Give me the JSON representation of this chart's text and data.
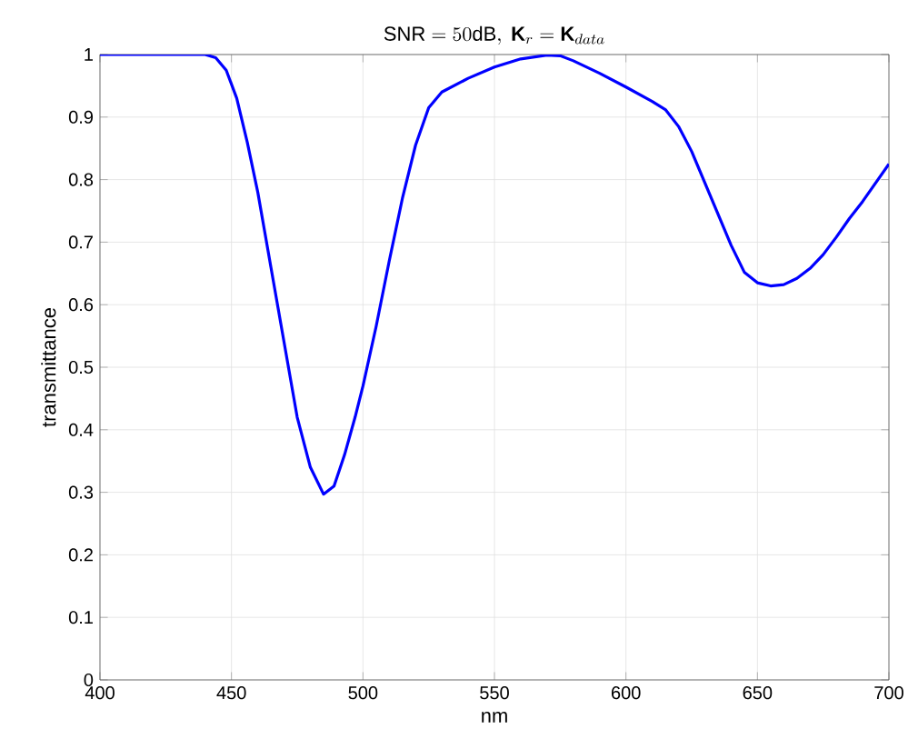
{
  "chart_data": {
    "type": "line",
    "title": "\\mathrm{SNR} = 50\\mathrm{dB},\\ \\mathbf{K}_r = \\mathbf{K}_{data}",
    "xlabel": "nm",
    "ylabel": "transmittance",
    "xlim": [
      400,
      700
    ],
    "ylim": [
      0,
      1
    ],
    "xticks": [
      400,
      450,
      500,
      550,
      600,
      650,
      700
    ],
    "yticks": [
      0,
      {
        "value": 0.1,
        "label": "0.1"
      },
      {
        "value": 0.2,
        "label": "0.2"
      },
      {
        "value": 0.3,
        "label": "0.3"
      },
      {
        "value": 0.4,
        "label": "0.4"
      },
      {
        "value": 0.5,
        "label": "0.5"
      },
      {
        "value": 0.6,
        "label": "0.6"
      },
      {
        "value": 0.7,
        "label": "0.7"
      },
      {
        "value": 0.8,
        "label": "0.8"
      },
      {
        "value": 0.9,
        "label": "0.9"
      },
      1
    ],
    "grid": true,
    "marker": "none",
    "line_style": "solid",
    "x": [
      400,
      440,
      444,
      448,
      452,
      456,
      460,
      465,
      470,
      475,
      480,
      485,
      489,
      493,
      497,
      500,
      505,
      510,
      515,
      520,
      525,
      530,
      540,
      550,
      560,
      570,
      575,
      580,
      590,
      600,
      610,
      615,
      620,
      625,
      630,
      635,
      640,
      645,
      650,
      655,
      660,
      665,
      670,
      675,
      680,
      685,
      690,
      695,
      700
    ],
    "series": [
      {
        "color": "#0000ff",
        "values": [
          1,
          1,
          0.995,
          0.975,
          0.93,
          0.86,
          0.78,
          0.66,
          0.54,
          0.42,
          0.34,
          0.297,
          0.31,
          0.36,
          0.42,
          0.47,
          0.565,
          0.67,
          0.77,
          0.855,
          0.915,
          0.94,
          0.962,
          0.98,
          0.993,
          0.999,
          0.998,
          0.99,
          0.97,
          0.948,
          0.925,
          0.912,
          0.885,
          0.845,
          0.795,
          0.745,
          0.695,
          0.652,
          0.635,
          0.63,
          0.632,
          0.642,
          0.658,
          0.68,
          0.708,
          0.738,
          0.765,
          0.795,
          0.825
        ]
      }
    ]
  }
}
